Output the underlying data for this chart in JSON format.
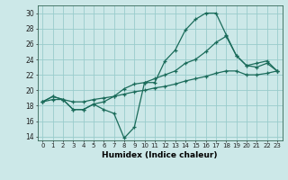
{
  "title": "",
  "xlabel": "Humidex (Indice chaleur)",
  "bg_color": "#cce8e8",
  "grid_color": "#99cccc",
  "line_color": "#1a6b5a",
  "xlim": [
    -0.5,
    23.5
  ],
  "ylim": [
    13.5,
    31
  ],
  "xticks": [
    0,
    1,
    2,
    3,
    4,
    5,
    6,
    7,
    8,
    9,
    10,
    11,
    12,
    13,
    14,
    15,
    16,
    17,
    18,
    19,
    20,
    21,
    22,
    23
  ],
  "yticks": [
    14,
    16,
    18,
    20,
    22,
    24,
    26,
    28,
    30
  ],
  "line1_x": [
    0,
    1,
    2,
    3,
    4,
    5,
    6,
    7,
    8,
    9,
    10,
    11,
    12,
    13,
    14,
    15,
    16,
    17,
    18,
    19,
    20,
    21,
    22,
    23
  ],
  "line1_y": [
    18.5,
    19.2,
    18.8,
    17.5,
    17.5,
    18.2,
    17.5,
    17.0,
    13.8,
    15.2,
    21.0,
    21.0,
    23.8,
    25.2,
    27.8,
    29.2,
    30.0,
    30.0,
    27.2,
    24.5,
    23.2,
    23.5,
    23.8,
    22.5
  ],
  "line2_x": [
    0,
    1,
    2,
    3,
    4,
    5,
    6,
    7,
    8,
    9,
    10,
    11,
    12,
    13,
    14,
    15,
    16,
    17,
    18,
    19,
    20,
    21,
    22,
    23
  ],
  "line2_y": [
    18.5,
    19.2,
    18.8,
    17.5,
    17.5,
    18.2,
    18.5,
    19.2,
    20.2,
    20.8,
    21.0,
    21.5,
    22.0,
    22.5,
    23.5,
    24.0,
    25.0,
    26.2,
    27.0,
    24.5,
    23.2,
    23.0,
    23.5,
    22.5
  ],
  "line3_x": [
    0,
    1,
    2,
    3,
    4,
    5,
    6,
    7,
    8,
    9,
    10,
    11,
    12,
    13,
    14,
    15,
    16,
    17,
    18,
    19,
    20,
    21,
    22,
    23
  ],
  "line3_y": [
    18.5,
    18.8,
    18.8,
    18.5,
    18.5,
    18.8,
    19.0,
    19.2,
    19.5,
    19.8,
    20.0,
    20.3,
    20.5,
    20.8,
    21.2,
    21.5,
    21.8,
    22.2,
    22.5,
    22.5,
    22.0,
    22.0,
    22.2,
    22.5
  ]
}
